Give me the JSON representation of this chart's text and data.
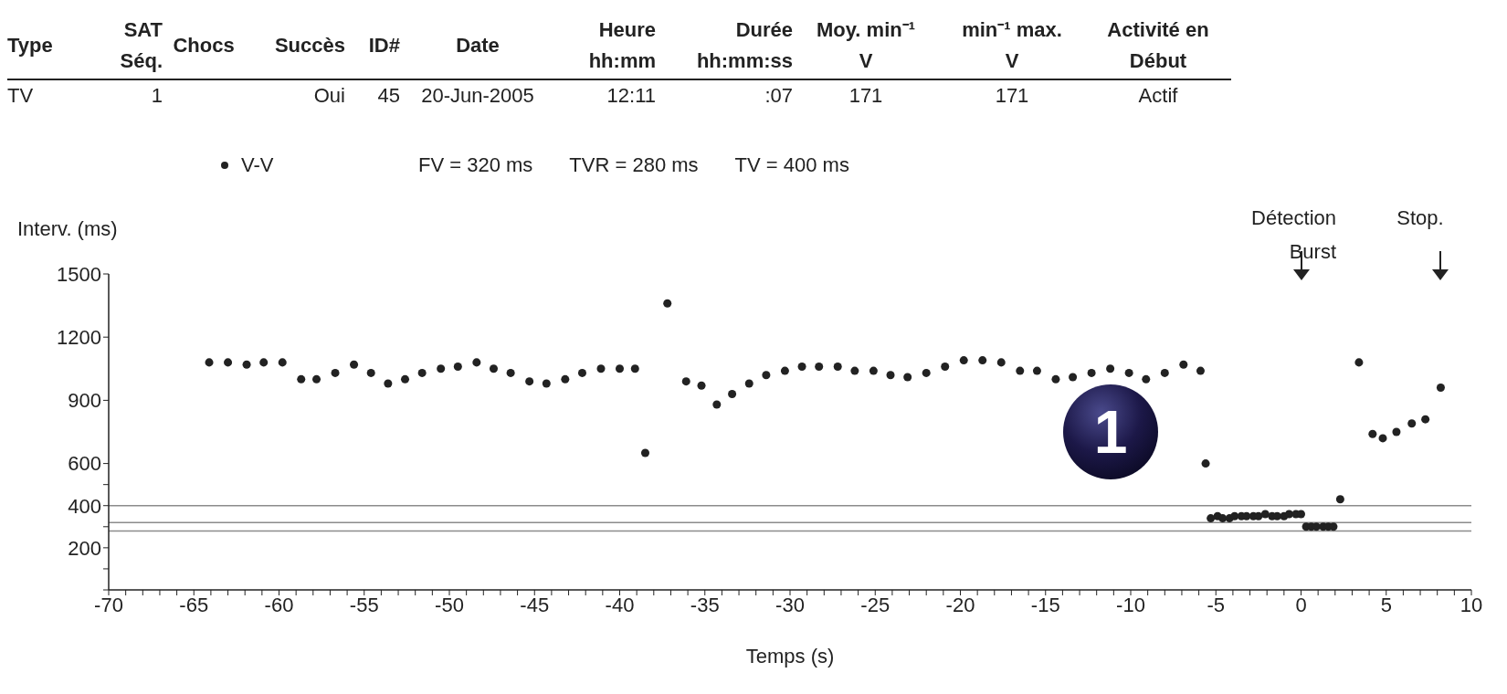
{
  "chart_data": [
    {
      "type": "other",
      "categories": [
        "Type",
        "SAT\nSéq.",
        "Chocs",
        "Succès",
        "ID#",
        "Date",
        "Heure\nhh:mm",
        "Durée\nhh:mm:ss",
        "Moy. min⁻¹\nV",
        "min⁻¹ max.\nV",
        "Activité en\nDébut"
      ],
      "annotations": [
        "TV",
        "1",
        null,
        "Oui",
        "45",
        "20-Jun-2005",
        "12:11",
        ":07",
        "171",
        "171",
        "Actif"
      ]
    },
    {
      "type": "scatter",
      "xlabel": "Temps (s)",
      "ylabel": "Interv. (ms)",
      "legend": "top",
      "marker": "circle",
      "grid": false,
      "series": [
        {
          "name": "V-V",
          "color": "#222222",
          "x": [
            -64.1,
            -63.0,
            -61.9,
            -60.9,
            -59.8,
            -58.7,
            -57.8,
            -56.7,
            -55.6,
            -54.6,
            -53.6,
            -52.6,
            -51.6,
            -50.5,
            -49.5,
            -48.4,
            -47.4,
            -46.4,
            -45.3,
            -44.3,
            -43.2,
            -42.2,
            -41.1,
            -40.0,
            -39.1,
            -38.5,
            -37.2,
            -36.1,
            -35.2,
            -34.3,
            -33.4,
            -32.4,
            -31.4,
            -30.3,
            -29.3,
            -28.3,
            -27.2,
            -26.2,
            -25.1,
            -24.1,
            -23.1,
            -22.0,
            -20.9,
            -19.8,
            -18.7,
            -17.6,
            -16.5,
            -15.5,
            -14.4,
            -13.4,
            -12.3,
            -11.2,
            -10.1,
            -9.1,
            -8.0,
            -6.9,
            -5.9,
            -5.6,
            -5.3,
            -4.9,
            -4.6,
            -4.2,
            -3.9,
            -3.5,
            -3.2,
            -2.8,
            -2.5,
            -2.1,
            -1.7,
            -1.4,
            -1.0,
            -0.7,
            -0.3,
            0.0,
            0.3,
            0.6,
            0.9,
            1.3,
            1.6,
            1.9,
            2.3,
            3.4,
            4.2,
            4.8,
            5.6,
            6.5,
            7.3,
            8.2
          ],
          "values": [
            1080,
            1080,
            1070,
            1080,
            1080,
            1000,
            1000,
            1030,
            1070,
            1030,
            980,
            1000,
            1030,
            1050,
            1060,
            1080,
            1050,
            1030,
            990,
            980,
            1000,
            1030,
            1050,
            1050,
            1050,
            650,
            1360,
            990,
            970,
            880,
            930,
            980,
            1020,
            1040,
            1060,
            1060,
            1060,
            1040,
            1040,
            1020,
            1010,
            1030,
            1060,
            1090,
            1090,
            1080,
            1040,
            1040,
            1000,
            1010,
            1030,
            1050,
            1030,
            1000,
            1030,
            1070,
            1040,
            600,
            340,
            350,
            340,
            340,
            350,
            350,
            350,
            350,
            350,
            360,
            350,
            350,
            350,
            360,
            360,
            360,
            300,
            300,
            300,
            300,
            300,
            300,
            430,
            1080,
            740,
            720,
            750,
            790,
            810,
            960
          ]
        }
      ],
      "xlim": [
        -70,
        10
      ],
      "xticks": [
        -70,
        {
          "value": -69,
          "label": null
        },
        {
          "value": -68,
          "label": null
        },
        {
          "value": -67,
          "label": null
        },
        {
          "value": -66,
          "label": null
        },
        -65,
        {
          "value": -64,
          "label": null
        },
        {
          "value": -63,
          "label": null
        },
        {
          "value": -62,
          "label": null
        },
        {
          "value": -61,
          "label": null
        },
        -60,
        {
          "value": -59,
          "label": null
        },
        {
          "value": -58,
          "label": null
        },
        {
          "value": -57,
          "label": null
        },
        {
          "value": -56,
          "label": null
        },
        -55,
        {
          "value": -54,
          "label": null
        },
        {
          "value": -53,
          "label": null
        },
        {
          "value": -52,
          "label": null
        },
        {
          "value": -51,
          "label": null
        },
        -50,
        {
          "value": -49,
          "label": null
        },
        {
          "value": -48,
          "label": null
        },
        {
          "value": -47,
          "label": null
        },
        {
          "value": -46,
          "label": null
        },
        -45,
        {
          "value": -44,
          "label": null
        },
        {
          "value": -43,
          "label": null
        },
        {
          "value": -42,
          "label": null
        },
        {
          "value": -41,
          "label": null
        },
        -40,
        {
          "value": -39,
          "label": null
        },
        {
          "value": -38,
          "label": null
        },
        {
          "value": -37,
          "label": null
        },
        {
          "value": -36,
          "label": null
        },
        -35,
        {
          "value": -34,
          "label": null
        },
        {
          "value": -33,
          "label": null
        },
        {
          "value": -32,
          "label": null
        },
        {
          "value": -31,
          "label": null
        },
        -30,
        {
          "value": -29,
          "label": null
        },
        {
          "value": -28,
          "label": null
        },
        {
          "value": -27,
          "label": null
        },
        {
          "value": -26,
          "label": null
        },
        -25,
        {
          "value": -24,
          "label": null
        },
        {
          "value": -23,
          "label": null
        },
        {
          "value": -22,
          "label": null
        },
        {
          "value": -21,
          "label": null
        },
        -20,
        {
          "value": -19,
          "label": null
        },
        {
          "value": -18,
          "label": null
        },
        {
          "value": -17,
          "label": null
        },
        {
          "value": -16,
          "label": null
        },
        -15,
        {
          "value": -14,
          "label": null
        },
        {
          "value": -13,
          "label": null
        },
        {
          "value": -12,
          "label": null
        },
        {
          "value": -11,
          "label": null
        },
        -10,
        {
          "value": -9,
          "label": null
        },
        {
          "value": -8,
          "label": null
        },
        {
          "value": -7,
          "label": null
        },
        {
          "value": -6,
          "label": null
        },
        -5,
        {
          "value": -4,
          "label": null
        },
        {
          "value": -3,
          "label": null
        },
        {
          "value": -2,
          "label": null
        },
        {
          "value": -1,
          "label": null
        },
        0,
        {
          "value": 1,
          "label": null
        },
        {
          "value": 2,
          "label": null
        },
        {
          "value": 3,
          "label": null
        },
        {
          "value": 4,
          "label": null
        },
        5,
        {
          "value": 6,
          "label": null
        },
        {
          "value": 7,
          "label": null
        },
        {
          "value": 8,
          "label": null
        },
        {
          "value": 9,
          "label": null
        },
        10
      ],
      "ylim": [
        0,
        1500
      ],
      "yticks": [
        {
          "value": 0,
          "label": null
        },
        {
          "value": 100,
          "label": null
        },
        200,
        {
          "value": 300,
          "label": null
        },
        400,
        {
          "value": 500,
          "label": null
        },
        600,
        900,
        1200,
        1500
      ],
      "ref_lines": [
        {
          "axis": "y",
          "value": 320,
          "color": "#8c8c8c"
        },
        {
          "axis": "y",
          "value": 280,
          "color": "#8c8c8c"
        },
        {
          "axis": "y",
          "value": 400,
          "color": "#8c8c8c"
        }
      ],
      "annotations": [
        "FV = 320 ms",
        "TVR = 280 ms",
        "TV = 400 ms",
        "Détection Burst",
        "Stop.",
        "1"
      ]
    }
  ]
}
